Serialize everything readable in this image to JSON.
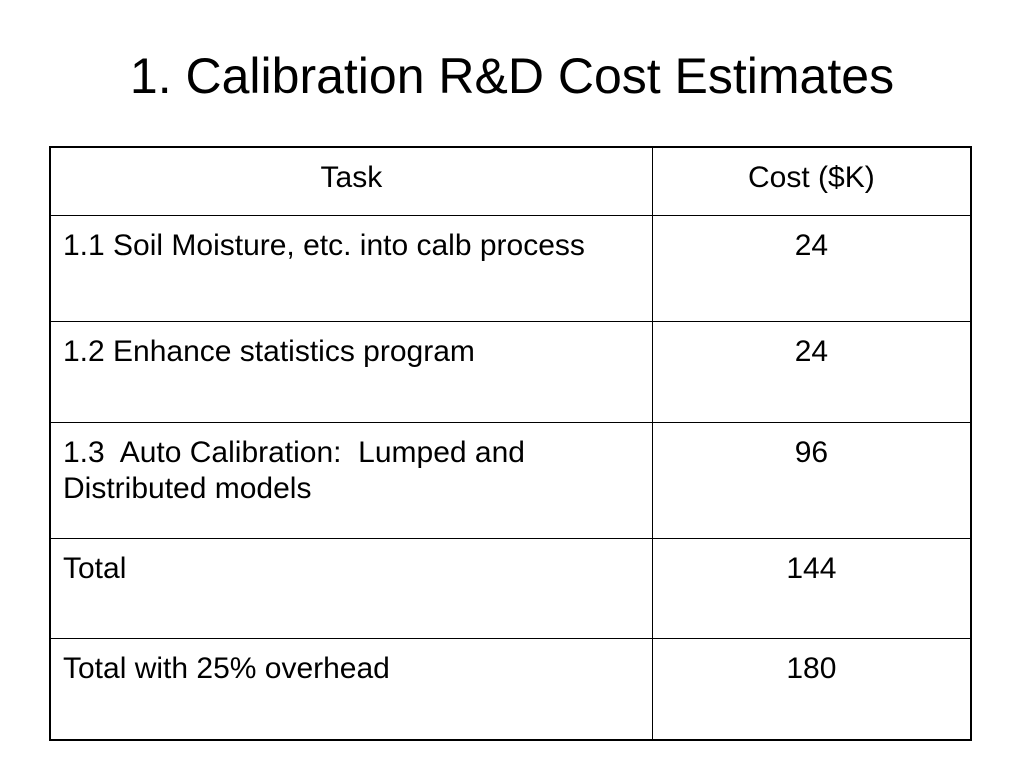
{
  "title": "1. Calibration R&D Cost Estimates",
  "table": {
    "headers": {
      "task": "Task",
      "cost": "Cost ($K)"
    },
    "rows": [
      {
        "task": "1.1 Soil Moisture, etc. into calb process",
        "cost": "24"
      },
      {
        "task": "1.2 Enhance statistics program",
        "cost": "24"
      },
      {
        "task": "1.3  Auto Calibration:  Lumped and Distributed models",
        "cost": "96"
      },
      {
        "task": "Total",
        "cost": "144"
      },
      {
        "task": "Total with 25% overhead",
        "cost": "180"
      }
    ]
  }
}
